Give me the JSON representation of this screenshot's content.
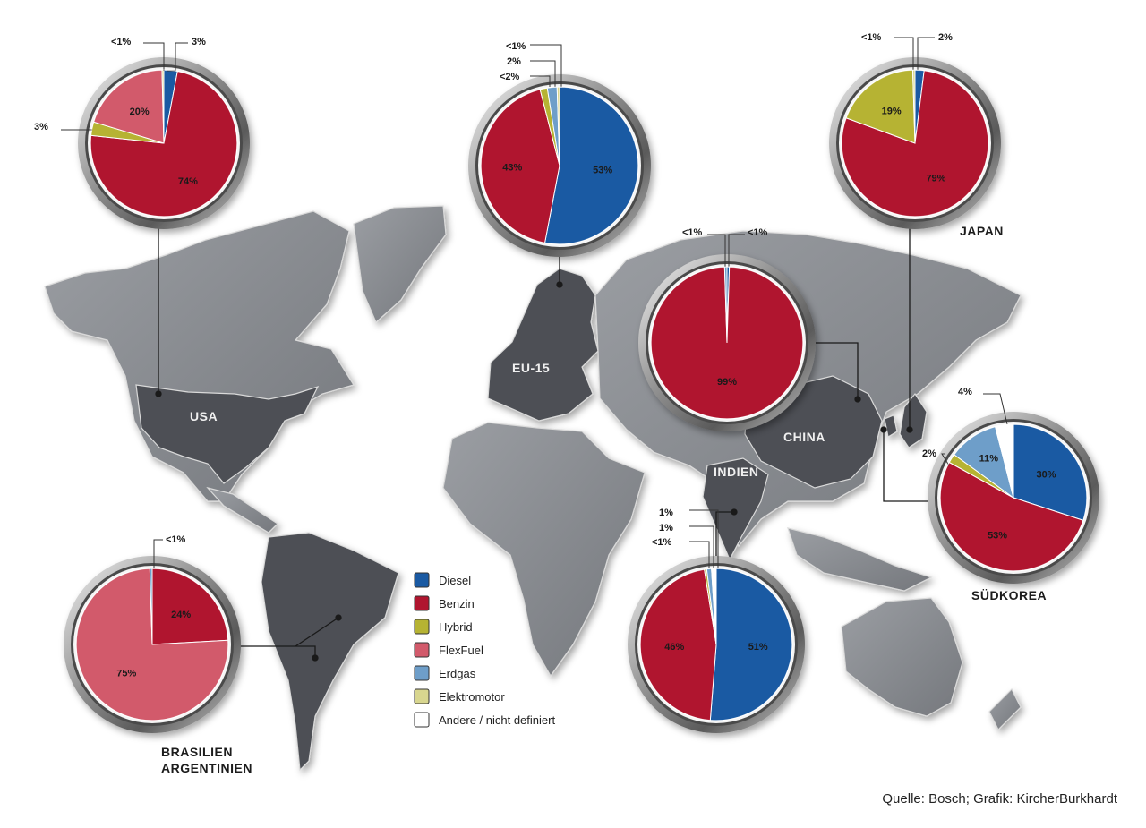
{
  "colors": {
    "Diesel": "#1a5aa3",
    "Benzin": "#b0152f",
    "Hybrid": "#b6b333",
    "FlexFuel": "#d25a6b",
    "Erdgas": "#6e9ec9",
    "Elektromotor": "#d8d68f",
    "Andere / nicht definiert": "#ffffff",
    "map_land": "#8a8d92",
    "map_land_dark": "#4b4d52"
  },
  "legend": {
    "items": [
      "Diesel",
      "Benzin",
      "Hybrid",
      "FlexFuel",
      "Erdgas",
      "Elektromotor",
      "Andere / nicht definiert"
    ]
  },
  "regions": {
    "usa": "USA",
    "eu15": "EU-15",
    "china": "CHINA",
    "indien": "INDIEN",
    "japan": "JAPAN",
    "suedkorea": "SÜDKOREA",
    "brasilien": "BRASILIEN",
    "argentinien": "ARGENTINIEN"
  },
  "source": "Quelle: Bosch; Grafik: KircherBurkhardt",
  "chart_data": [
    {
      "type": "pie",
      "region": "USA",
      "slices": [
        {
          "label": "Diesel",
          "value": 3,
          "text": "3%"
        },
        {
          "label": "Benzin",
          "value": 74,
          "text": "74%"
        },
        {
          "label": "Hybrid",
          "value": 3,
          "text": "3%"
        },
        {
          "label": "FlexFuel",
          "value": 20,
          "text": "20%"
        },
        {
          "label": "Elektromotor",
          "value": 0.4,
          "text": "<1%"
        }
      ]
    },
    {
      "type": "pie",
      "region": "EU-15",
      "slices": [
        {
          "label": "Diesel",
          "value": 53,
          "text": "53%"
        },
        {
          "label": "Benzin",
          "value": 43,
          "text": "43%"
        },
        {
          "label": "Hybrid",
          "value": 1.5,
          "text": "<2%"
        },
        {
          "label": "Erdgas",
          "value": 2,
          "text": "2%"
        },
        {
          "label": "Elektromotor",
          "value": 0.5,
          "text": "<1%"
        }
      ]
    },
    {
      "type": "pie",
      "region": "China",
      "slices": [
        {
          "label": "Diesel",
          "value": 0.5,
          "text": "<1%"
        },
        {
          "label": "Benzin",
          "value": 99,
          "text": "99%"
        },
        {
          "label": "Erdgas",
          "value": 0.5,
          "text": "<1%"
        }
      ]
    },
    {
      "type": "pie",
      "region": "Japan",
      "slices": [
        {
          "label": "Diesel",
          "value": 2,
          "text": "2%"
        },
        {
          "label": "Benzin",
          "value": 79,
          "text": "79%"
        },
        {
          "label": "Hybrid",
          "value": 19,
          "text": "19%"
        },
        {
          "label": "Elektromotor",
          "value": 0.5,
          "text": "<1%"
        }
      ]
    },
    {
      "type": "pie",
      "region": "Südkorea",
      "slices": [
        {
          "label": "Diesel",
          "value": 30,
          "text": "30%"
        },
        {
          "label": "Benzin",
          "value": 53,
          "text": "53%"
        },
        {
          "label": "Hybrid",
          "value": 2,
          "text": "2%"
        },
        {
          "label": "Erdgas",
          "value": 11,
          "text": "11%"
        },
        {
          "label": "Andere / nicht definiert",
          "value": 4,
          "text": "4%"
        }
      ]
    },
    {
      "type": "pie",
      "region": "Indien",
      "slices": [
        {
          "label": "Diesel",
          "value": 51,
          "text": "51%"
        },
        {
          "label": "Benzin",
          "value": 46,
          "text": "46%"
        },
        {
          "label": "Hybrid",
          "value": 0.5,
          "text": "<1%"
        },
        {
          "label": "Erdgas",
          "value": 1,
          "text": "1%"
        },
        {
          "label": "Andere / nicht definiert",
          "value": 1,
          "text": "1%"
        }
      ]
    },
    {
      "type": "pie",
      "region": "Brasilien / Argentinien",
      "slices": [
        {
          "label": "Benzin",
          "value": 24,
          "text": "24%"
        },
        {
          "label": "FlexFuel",
          "value": 75,
          "text": "75%"
        },
        {
          "label": "Erdgas",
          "value": 0.5,
          "text": "<1%"
        }
      ]
    }
  ]
}
